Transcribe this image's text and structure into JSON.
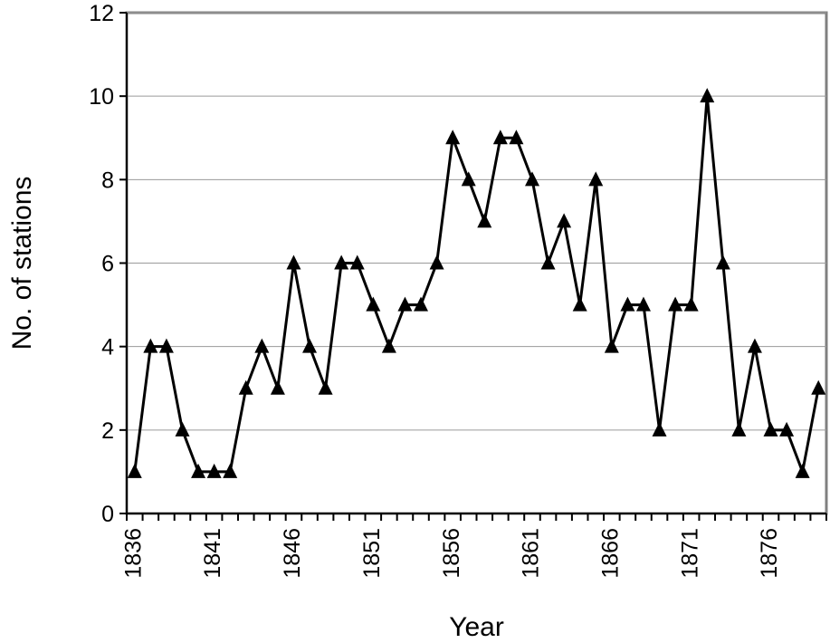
{
  "chart_data": {
    "type": "line",
    "title": "",
    "xlabel": "Year",
    "ylabel": "No. of stations",
    "x": [
      1836,
      1837,
      1838,
      1839,
      1840,
      1841,
      1842,
      1843,
      1844,
      1845,
      1846,
      1847,
      1848,
      1849,
      1850,
      1851,
      1852,
      1853,
      1854,
      1855,
      1856,
      1857,
      1858,
      1859,
      1860,
      1861,
      1862,
      1863,
      1864,
      1865,
      1866,
      1867,
      1868,
      1869,
      1870,
      1871,
      1872,
      1873,
      1874,
      1875,
      1876,
      1877,
      1878,
      1879
    ],
    "series": [
      {
        "values": [
          1,
          4,
          4,
          2,
          1,
          1,
          1,
          3,
          4,
          3,
          6,
          4,
          3,
          6,
          6,
          5,
          4,
          5,
          5,
          6,
          9,
          8,
          7,
          9,
          9,
          8,
          6,
          7,
          5,
          8,
          4,
          5,
          5,
          2,
          5,
          5,
          10,
          6,
          2,
          4,
          2,
          2,
          1,
          3
        ],
        "marker": "triangle",
        "color": "#000000"
      }
    ],
    "ylim": [
      0,
      12
    ],
    "yticks": [
      0,
      2,
      4,
      6,
      8,
      10,
      12
    ],
    "xtick_labels": [
      "1836",
      "1841",
      "1846",
      "1851",
      "1856",
      "1861",
      "1866",
      "1871",
      "1876"
    ],
    "grid": "horizontal",
    "legend": "none"
  }
}
